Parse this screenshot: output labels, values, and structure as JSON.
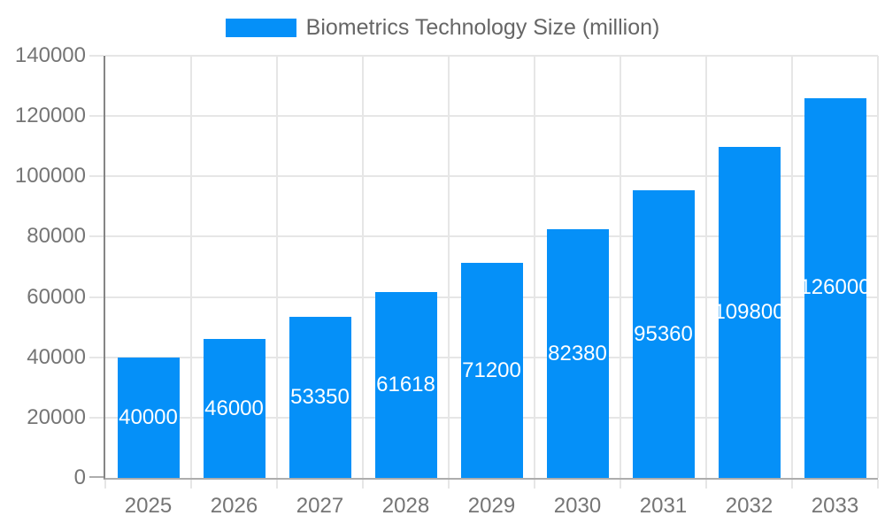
{
  "legend": {
    "label": "Biometrics Technology Size (million)"
  },
  "chart_data": {
    "type": "bar",
    "title": "Biometrics Technology Size (million)",
    "categories": [
      "2025",
      "2026",
      "2027",
      "2028",
      "2029",
      "2030",
      "2031",
      "2032",
      "2033"
    ],
    "series": [
      {
        "name": "Biometrics Technology Size (million)",
        "values": [
          40000,
          46000,
          53350,
          61618,
          71200,
          82380,
          95360,
          109800,
          126000
        ]
      }
    ],
    "value_labels": [
      "40000",
      "46000",
      "53350",
      "61618",
      "71200",
      "82380",
      "95360",
      "109800",
      "126000"
    ],
    "y_ticks": [
      0,
      20000,
      40000,
      60000,
      80000,
      100000,
      120000,
      140000
    ],
    "y_tick_labels": [
      "0",
      "20000",
      "40000",
      "60000",
      "80000",
      "100000",
      "120000",
      "140000"
    ],
    "ylim": [
      0,
      140000
    ],
    "xlabel": "",
    "ylabel": "",
    "grid": true,
    "legend_position": "top",
    "bar_color": "#0590f8",
    "value_label_color": "#ffffff",
    "axis_text_color": "#757575",
    "gridline_color": "#e6e6e6",
    "baseline_color": "#adadad",
    "yaxis_line_color": "#858585"
  }
}
